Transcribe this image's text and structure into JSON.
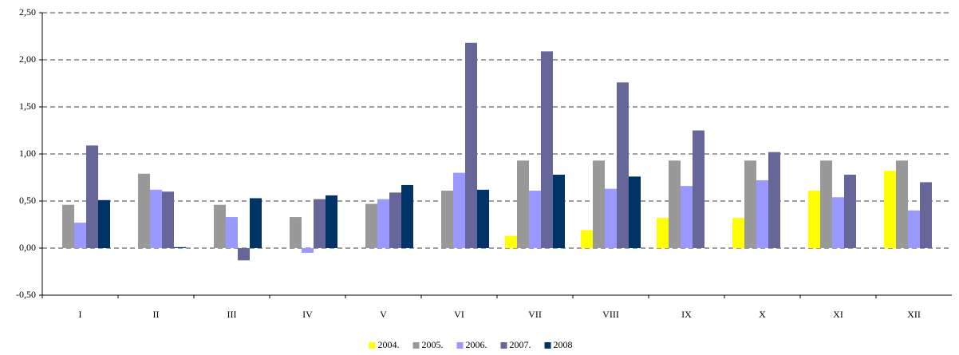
{
  "chart_data": {
    "type": "bar",
    "categories": [
      "I",
      "II",
      "III",
      "IV",
      "V",
      "VI",
      "VII",
      "VIII",
      "IX",
      "X",
      "XI",
      "XII"
    ],
    "series": [
      {
        "name": "2004.",
        "color": "#ffff00",
        "values": [
          null,
          null,
          null,
          null,
          null,
          null,
          0.13,
          0.19,
          0.32,
          0.32,
          0.61,
          0.82
        ]
      },
      {
        "name": "2005.",
        "color": "#999999",
        "values": [
          0.46,
          0.79,
          0.46,
          0.33,
          0.47,
          0.61,
          0.93,
          0.93,
          0.93,
          0.93,
          0.93,
          0.93
        ]
      },
      {
        "name": "2006.",
        "color": "#9999ff",
        "values": [
          0.27,
          0.62,
          0.33,
          -0.05,
          0.52,
          0.8,
          0.61,
          0.63,
          0.66,
          0.72,
          0.54,
          0.4
        ]
      },
      {
        "name": "2007.",
        "color": "#666699",
        "values": [
          1.09,
          0.6,
          -0.13,
          0.52,
          0.59,
          2.18,
          2.09,
          1.76,
          1.25,
          1.02,
          0.78,
          0.7
        ]
      },
      {
        "name": "2008",
        "color": "#003366",
        "values": [
          0.51,
          0.01,
          0.53,
          0.56,
          0.67,
          0.62,
          0.78,
          0.76,
          null,
          null,
          null,
          null
        ]
      }
    ],
    "ylim": [
      -0.5,
      2.5
    ],
    "yticks": [
      {
        "value": -0.5,
        "label": "-0,50"
      },
      {
        "value": 0,
        "label": "0,00"
      },
      {
        "value": 0.5,
        "label": "0,50"
      },
      {
        "value": 1,
        "label": "1,00"
      },
      {
        "value": 1.5,
        "label": "1,50"
      },
      {
        "value": 2,
        "label": "2,00"
      },
      {
        "value": 2.5,
        "label": "2,50"
      }
    ],
    "grid": true,
    "legend": "bottom"
  }
}
